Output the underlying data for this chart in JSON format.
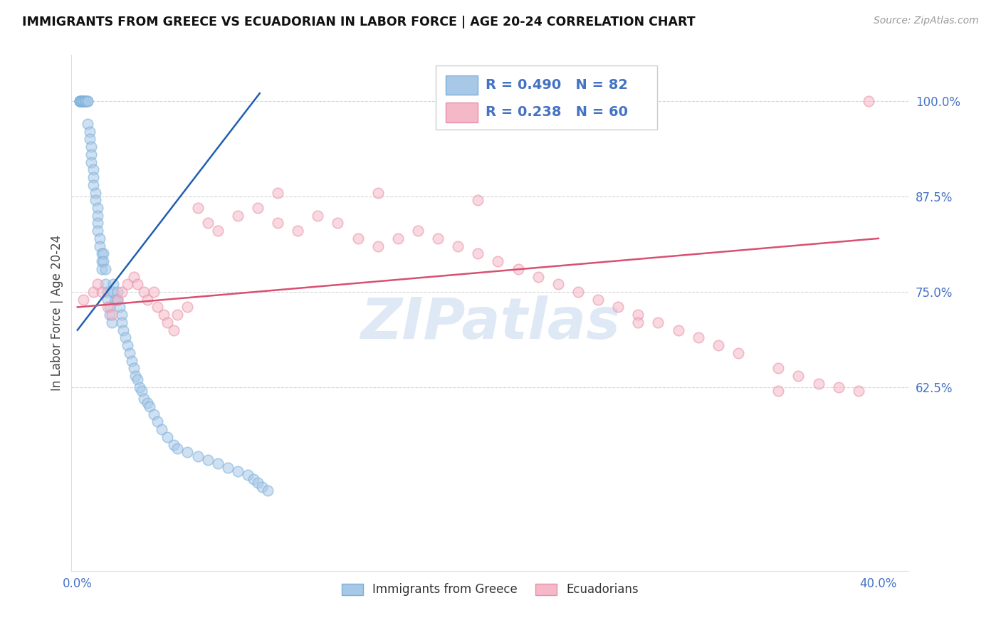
{
  "title": "IMMIGRANTS FROM GREECE VS ECUADORIAN IN LABOR FORCE | AGE 20-24 CORRELATION CHART",
  "source": "Source: ZipAtlas.com",
  "ylabel": "In Labor Force | Age 20-24",
  "watermark": "ZIPatlas",
  "legend_blue_r": "R = 0.490",
  "legend_blue_n": "N = 82",
  "legend_pink_r": "R = 0.238",
  "legend_pink_n": "N = 60",
  "legend_blue_label": "Immigrants from Greece",
  "legend_pink_label": "Ecuadorians",
  "xlim_min": -0.003,
  "xlim_max": 0.415,
  "ylim_min": 0.385,
  "ylim_max": 1.06,
  "xtick_positions": [
    0.0,
    0.05,
    0.1,
    0.15,
    0.2,
    0.25,
    0.3,
    0.35,
    0.4
  ],
  "xticklabels": [
    "0.0%",
    "",
    "",
    "",
    "",
    "",
    "",
    "",
    "40.0%"
  ],
  "yticks_right": [
    0.625,
    0.75,
    0.875,
    1.0
  ],
  "ytick_labels_right": [
    "62.5%",
    "75.0%",
    "87.5%",
    "100.0%"
  ],
  "blue_face_color": "#a8c8e8",
  "blue_edge_color": "#7ab0d8",
  "pink_face_color": "#f5b8c8",
  "pink_edge_color": "#e890a8",
  "blue_line_color": "#2060b0",
  "pink_line_color": "#d85070",
  "axis_label_color": "#4472c4",
  "grid_color": "#cccccc",
  "background": "#ffffff",
  "blue_regline_x": [
    0.0,
    0.091
  ],
  "blue_regline_y": [
    0.7,
    1.01
  ],
  "pink_regline_x": [
    0.0,
    0.4
  ],
  "pink_regline_y": [
    0.73,
    0.82
  ],
  "scatter_size": 110,
  "scatter_alpha": 0.55,
  "blue_x": [
    0.001,
    0.001,
    0.001,
    0.002,
    0.002,
    0.002,
    0.003,
    0.003,
    0.003,
    0.003,
    0.004,
    0.004,
    0.004,
    0.005,
    0.005,
    0.005,
    0.006,
    0.006,
    0.007,
    0.007,
    0.007,
    0.008,
    0.008,
    0.008,
    0.009,
    0.009,
    0.01,
    0.01,
    0.01,
    0.01,
    0.011,
    0.011,
    0.012,
    0.012,
    0.012,
    0.013,
    0.013,
    0.014,
    0.014,
    0.015,
    0.015,
    0.016,
    0.016,
    0.017,
    0.018,
    0.018,
    0.019,
    0.02,
    0.02,
    0.021,
    0.022,
    0.022,
    0.023,
    0.024,
    0.025,
    0.026,
    0.027,
    0.028,
    0.029,
    0.03,
    0.031,
    0.032,
    0.033,
    0.035,
    0.036,
    0.038,
    0.04,
    0.042,
    0.045,
    0.048,
    0.05,
    0.055,
    0.06,
    0.065,
    0.07,
    0.075,
    0.08,
    0.085,
    0.088,
    0.09,
    0.092,
    0.095
  ],
  "blue_y": [
    1.0,
    1.0,
    1.0,
    1.0,
    1.0,
    1.0,
    1.0,
    1.0,
    1.0,
    1.0,
    1.0,
    1.0,
    1.0,
    1.0,
    1.0,
    0.97,
    0.96,
    0.95,
    0.94,
    0.93,
    0.92,
    0.91,
    0.9,
    0.89,
    0.88,
    0.87,
    0.86,
    0.85,
    0.84,
    0.83,
    0.82,
    0.81,
    0.8,
    0.79,
    0.78,
    0.8,
    0.79,
    0.78,
    0.76,
    0.75,
    0.74,
    0.73,
    0.72,
    0.71,
    0.76,
    0.75,
    0.74,
    0.75,
    0.74,
    0.73,
    0.72,
    0.71,
    0.7,
    0.69,
    0.68,
    0.67,
    0.66,
    0.65,
    0.64,
    0.635,
    0.625,
    0.62,
    0.61,
    0.605,
    0.6,
    0.59,
    0.58,
    0.57,
    0.56,
    0.55,
    0.545,
    0.54,
    0.535,
    0.53,
    0.525,
    0.52,
    0.515,
    0.51,
    0.505,
    0.5,
    0.495,
    0.49
  ],
  "pink_x": [
    0.003,
    0.008,
    0.01,
    0.012,
    0.015,
    0.017,
    0.02,
    0.022,
    0.025,
    0.028,
    0.03,
    0.033,
    0.035,
    0.038,
    0.04,
    0.043,
    0.045,
    0.048,
    0.05,
    0.055,
    0.06,
    0.065,
    0.07,
    0.08,
    0.09,
    0.1,
    0.11,
    0.12,
    0.13,
    0.14,
    0.15,
    0.16,
    0.17,
    0.18,
    0.19,
    0.2,
    0.21,
    0.22,
    0.23,
    0.24,
    0.25,
    0.26,
    0.27,
    0.28,
    0.29,
    0.3,
    0.31,
    0.32,
    0.33,
    0.35,
    0.36,
    0.37,
    0.38,
    0.39,
    0.395,
    0.1,
    0.15,
    0.2,
    0.28,
    0.35
  ],
  "pink_y": [
    0.74,
    0.75,
    0.76,
    0.75,
    0.73,
    0.72,
    0.74,
    0.75,
    0.76,
    0.77,
    0.76,
    0.75,
    0.74,
    0.75,
    0.73,
    0.72,
    0.71,
    0.7,
    0.72,
    0.73,
    0.86,
    0.84,
    0.83,
    0.85,
    0.86,
    0.84,
    0.83,
    0.85,
    0.84,
    0.82,
    0.81,
    0.82,
    0.83,
    0.82,
    0.81,
    0.8,
    0.79,
    0.78,
    0.77,
    0.76,
    0.75,
    0.74,
    0.73,
    0.72,
    0.71,
    0.7,
    0.69,
    0.68,
    0.67,
    0.65,
    0.64,
    0.63,
    0.625,
    0.62,
    1.0,
    0.88,
    0.88,
    0.87,
    0.71,
    0.62
  ]
}
